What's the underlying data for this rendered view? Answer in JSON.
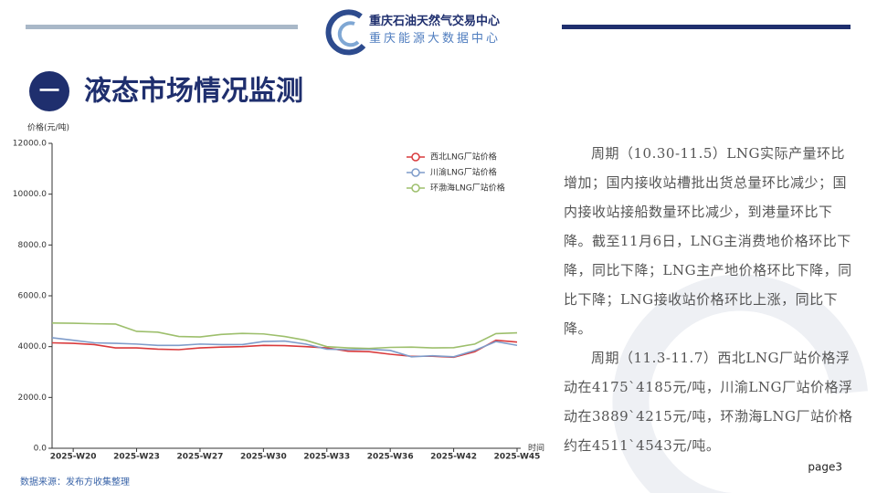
{
  "header": {
    "org": "重庆石油天然气交易中心",
    "org2": "重庆能源大数据中心"
  },
  "title": {
    "number": "一",
    "text": "液态市场情况监测"
  },
  "chart_data": {
    "type": "line",
    "y_label": "价格(元/吨)",
    "x_label": "时间",
    "categories": [
      null,
      "2025-W20",
      null,
      null,
      "2025-W23",
      null,
      null,
      "2025-W27",
      null,
      null,
      "2025-W30",
      null,
      null,
      "2025-W33",
      null,
      null,
      "2025-W36",
      null,
      null,
      "2025-W42",
      null,
      null,
      "2025-W45"
    ],
    "series": [
      {
        "name": "西北LNG厂站价格",
        "color": "#d93a3c",
        "values": [
          4150,
          4130,
          4080,
          3950,
          3950,
          3900,
          3880,
          3950,
          3980,
          4000,
          4050,
          4040,
          4000,
          3950,
          3820,
          3800,
          3700,
          3620,
          3620,
          3580,
          3800,
          4250,
          4180
        ]
      },
      {
        "name": "川渝LNG厂站价格",
        "color": "#7f9cca",
        "values": [
          4350,
          4250,
          4150,
          4130,
          4100,
          4050,
          4050,
          4100,
          4080,
          4080,
          4200,
          4220,
          4100,
          3900,
          3880,
          3900,
          3850,
          3600,
          3640,
          3600,
          3850,
          4200,
          4050
        ]
      },
      {
        "name": "环渤海LNG厂站价格",
        "color": "#9dbf6c",
        "values": [
          4930,
          4920,
          4900,
          4890,
          4600,
          4570,
          4400,
          4380,
          4480,
          4520,
          4500,
          4400,
          4250,
          4000,
          3950,
          3930,
          3970,
          3980,
          3950,
          3960,
          4100,
          4511,
          4543
        ]
      }
    ],
    "ylim": [
      0,
      12000
    ],
    "yticks": [
      {
        "value": 0,
        "label": "0.0"
      },
      {
        "value": 2000,
        "label": "2000.0"
      },
      {
        "value": 4000,
        "label": "4000.0"
      },
      {
        "value": 6000,
        "label": "6000.0"
      },
      {
        "value": 8000,
        "label": "8000.0"
      },
      {
        "value": 10000,
        "label": "10000.0"
      },
      {
        "value": 12000,
        "label": "12000.0"
      }
    ],
    "grid": false,
    "legend": "top-right"
  },
  "text": {
    "paragraphs": [
      "周期（10.30-11.5）LNG实际产量环比增加；国内接收站槽批出货总量环比减少；国内接收站接船数量环比减少，到港量环比下降。截至11月6日，LNG主消费地价格环比下降，同比下降；LNG主产地价格环比下降，同比下降；LNG接收站价格环比上涨，同比下降。",
      "周期（11.3-11.7）西北LNG厂站价格浮动在4175`4185元/吨，川渝LNG厂站价格浮动在3889`4215元/吨，环渤海LNG厂站价格约在4511`4543元/吨。"
    ]
  },
  "footer": {
    "source": "数据来源：发布方收集整理",
    "page": "page3"
  }
}
